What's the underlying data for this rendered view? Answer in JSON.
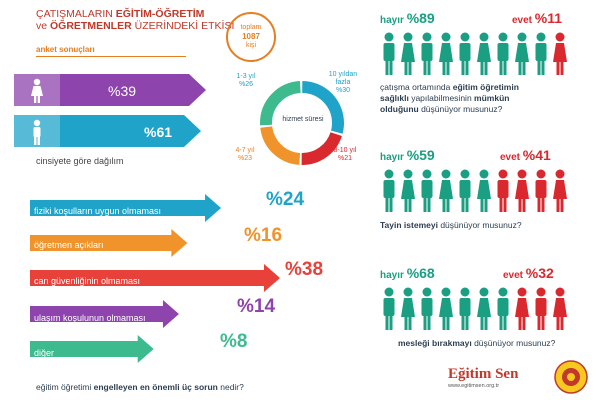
{
  "header": {
    "title_line1_a": "ÇATIŞMALARIN ",
    "title_line1_b": "EĞİTİM-ÖĞRETİM",
    "title_line2_a": "ve ",
    "title_line2_b": "ÖĞRETMENLER",
    "title_line2_c": " ÜZERİNDEKİ ETKİSİ",
    "subtitle": "anket sonuçları",
    "total_label": "toplam",
    "total_value": "1087",
    "total_unit": "kişi"
  },
  "gender": {
    "female_pct": "%39",
    "male_pct": "%61",
    "caption": "cinsiyete göre dağılım",
    "female_color": "#8e44ad",
    "male_color": "#1fa3c9"
  },
  "service": {
    "center_label": "hizmet süresi",
    "segments": [
      {
        "label": "1-3 yıl",
        "pct": "%26",
        "value": 26,
        "color": "#1fa3c9"
      },
      {
        "label": "10 yıldan fazla",
        "pct": "%30",
        "value": 30,
        "color": "#1fa3c9"
      },
      {
        "label": "8-10 yıl",
        "pct": "%21",
        "value": 21,
        "color": "#d9292f"
      },
      {
        "label": "4-7 yıl",
        "pct": "%23",
        "value": 23,
        "color": "#e67e22"
      }
    ]
  },
  "problems": {
    "items": [
      {
        "label": "fiziki koşulların uygun olmaması",
        "pct": "%24",
        "value": 24,
        "color": "#1fa3c9"
      },
      {
        "label": "öğretmen açıkları",
        "pct": "%16",
        "value": 16,
        "color": "#f0932b"
      },
      {
        "label": "can güvenliğinin olmaması",
        "pct": "%38",
        "value": 38,
        "color": "#e8413a"
      },
      {
        "label": "ulaşım koşulunun olmaması",
        "pct": "%14",
        "value": 14,
        "color": "#8e44ad"
      },
      {
        "label": "diğer",
        "pct": "%8",
        "value": 8,
        "color": "#3dbb8f"
      }
    ],
    "question_a": "eğitim öğretimi ",
    "question_b": "engelleyen en önemli üç sorun",
    "question_c": " nedir?"
  },
  "surveys": [
    {
      "no_label": "hayır",
      "no_pct": "%89",
      "yes_label": "evet",
      "yes_pct": "%11",
      "no_value": 89,
      "yes_value": 11,
      "q_line1_a": "çatışma ortamında ",
      "q_line1_b": "eğitim öğretimin",
      "q_line2_a": "sağlıklı",
      "q_line2_b": " yapılabilmesinin ",
      "q_line2_c": "mümkün",
      "q_line3_a": "olduğunu",
      "q_line3_b": " düşünüyor musunuz?"
    },
    {
      "no_label": "hayır",
      "no_pct": "%59",
      "yes_label": "evet",
      "yes_pct": "%41",
      "no_value": 59,
      "yes_value": 41,
      "q_line1_a": "Tayin istemeyi",
      "q_line1_b": " düşünüyor musunuz?"
    },
    {
      "no_label": "hayır",
      "no_pct": "%68",
      "yes_label": "evet",
      "yes_pct": "%32",
      "no_value": 68,
      "yes_value": 32,
      "q_line1_a": "mesleği bırakmayı",
      "q_line1_b": " düşünüyor musunuz?"
    }
  ],
  "colors": {
    "no": "#1a9f83",
    "yes": "#d9292f"
  },
  "logo": {
    "name": "Eğitim Sen",
    "url": "www.egitimsen.org.tr",
    "badge_text": "EĞİTİM SEN"
  }
}
